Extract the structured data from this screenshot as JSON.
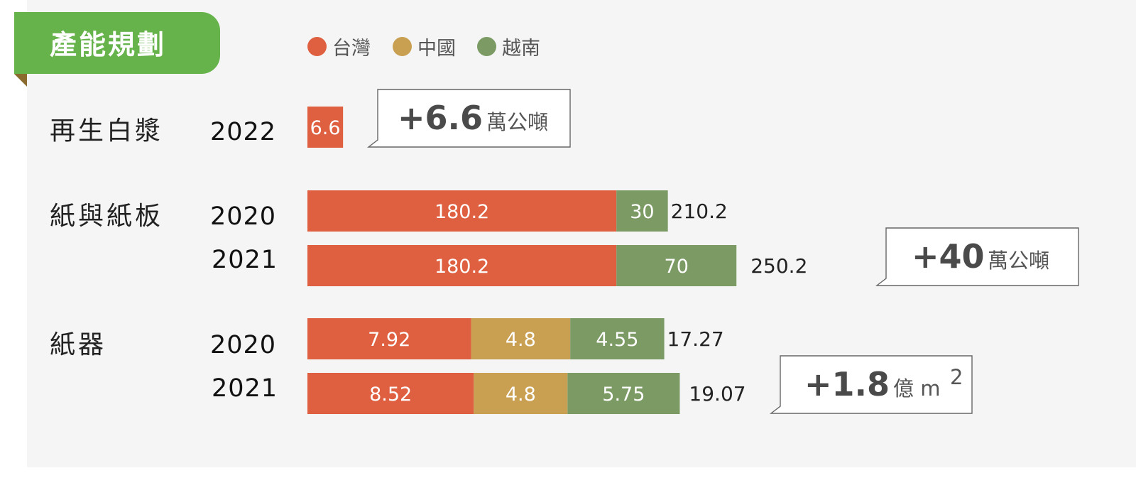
{
  "title": "產能規劃",
  "legend": [
    {
      "name": "台灣",
      "color": "#df6040"
    },
    {
      "name": "中國",
      "color": "#c9a052"
    },
    {
      "name": "越南",
      "color": "#7b9a64"
    }
  ],
  "groups": [
    {
      "label": "再生白漿"
    },
    {
      "label": "紙與紙板"
    },
    {
      "label": "紙器"
    }
  ],
  "chart_data": {
    "type": "bar",
    "orientation": "horizontal",
    "stacked": true,
    "series_names": [
      "台灣",
      "中國",
      "越南"
    ],
    "rows": [
      {
        "group": "再生白漿",
        "year": "2022",
        "values": [
          6.6,
          0,
          0
        ],
        "total": ""
      },
      {
        "group": "紙與紙板",
        "year": "2020",
        "values": [
          180.2,
          0,
          30
        ],
        "total": "210.2"
      },
      {
        "group": "紙與紙板",
        "year": "2021",
        "values": [
          180.2,
          0,
          70
        ],
        "total": "250.2"
      },
      {
        "group": "紙器",
        "year": "2020",
        "values": [
          7.92,
          4.8,
          4.55
        ],
        "total": "17.27"
      },
      {
        "group": "紙器",
        "year": "2021",
        "values": [
          8.52,
          4.8,
          5.75
        ],
        "total": "19.07"
      }
    ],
    "callouts": [
      {
        "group": "再生白漿",
        "big": "+6.6",
        "unit": "萬公噸",
        "sup": ""
      },
      {
        "group": "紙與紙板",
        "big": "+40",
        "unit": "萬公噸",
        "sup": ""
      },
      {
        "group": "紙器",
        "big": "+1.8",
        "unit": "億 m",
        "sup": "2"
      }
    ]
  }
}
